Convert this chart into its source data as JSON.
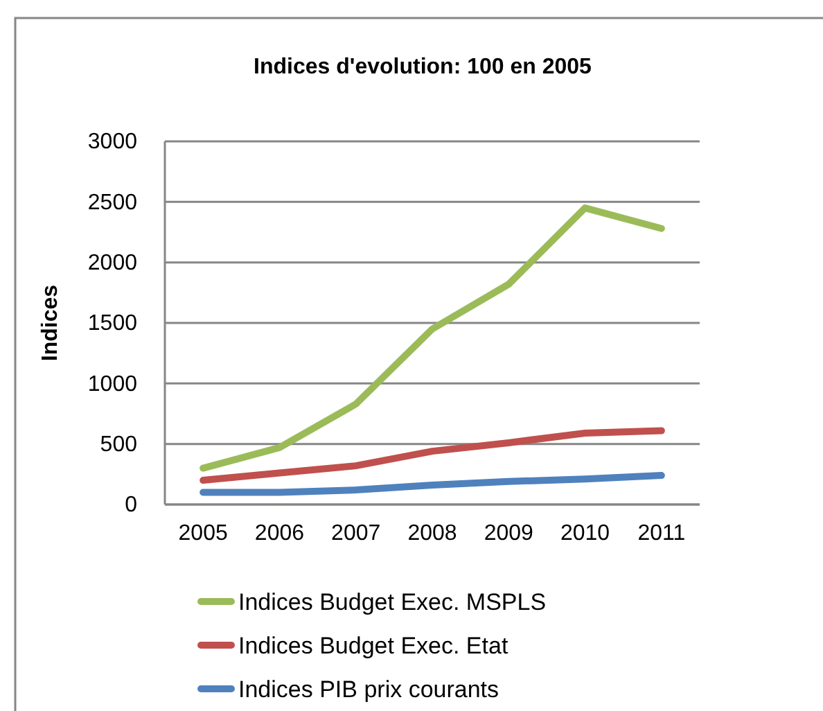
{
  "chart_data": {
    "type": "line",
    "title": "Indices d'evolution: 100 en 2005",
    "ylabel": "Indices",
    "categories": [
      "2005",
      "2006",
      "2007",
      "2008",
      "2009",
      "2010",
      "2011"
    ],
    "series": [
      {
        "name": "Indices Budget Exec. MSPLS",
        "color": "#9bbb59",
        "values": [
          300,
          470,
          830,
          1450,
          1820,
          2450,
          2280
        ]
      },
      {
        "name": "Indices Budget Exec. Etat",
        "color": "#c0504d",
        "values": [
          200,
          260,
          320,
          440,
          510,
          590,
          610
        ]
      },
      {
        "name": "Indices PIB prix courants",
        "color": "#4f81bd",
        "values": [
          100,
          100,
          120,
          160,
          190,
          210,
          240
        ]
      }
    ],
    "ylim": [
      0,
      3000
    ],
    "yticks": [
      0,
      500,
      1000,
      1500,
      2000,
      2500,
      3000
    ],
    "grid": "y",
    "legend": "bottom",
    "line_style": "solid",
    "marker": "none"
  }
}
